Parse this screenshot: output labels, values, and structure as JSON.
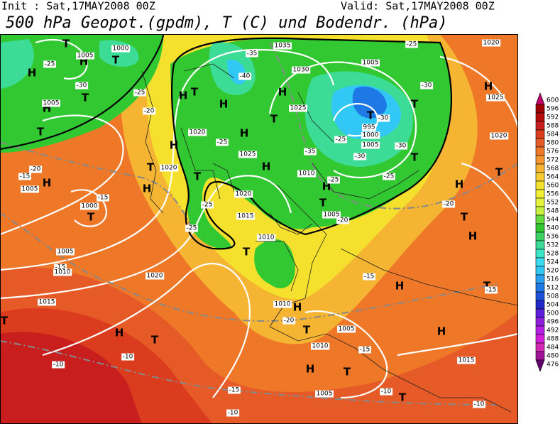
{
  "header": {
    "init": "Init : Sat,17MAY2008 00Z",
    "valid": "Valid: Sat,17MAY2008 00Z",
    "title": "500 hPa Geopot.(gpdm), T (C) und Bodendr. (hPa)"
  },
  "legend": {
    "levels": [
      600,
      596,
      592,
      588,
      584,
      580,
      576,
      572,
      568,
      564,
      560,
      556,
      552,
      548,
      544,
      540,
      536,
      532,
      528,
      524,
      520,
      516,
      512,
      508,
      504,
      500,
      496,
      492,
      488,
      484,
      480,
      476
    ],
    "colors": [
      "#c0006a",
      "#a00000",
      "#b40a0a",
      "#c81e1e",
      "#dc3c1e",
      "#e65a28",
      "#ee7828",
      "#f5962d",
      "#f5b432",
      "#f7cd32",
      "#f5e12d",
      "#f0f032",
      "#e6f53c",
      "#c8f03c",
      "#64dc3c",
      "#32c832",
      "#3cd264",
      "#3cdc96",
      "#3ce6c8",
      "#3cdcf0",
      "#32c8f5",
      "#28a0f0",
      "#1e78e6",
      "#1e50dc",
      "#1e28c8",
      "#5a1edc",
      "#8c1edc",
      "#b41ee6",
      "#d21edc",
      "#d228b4",
      "#a01496",
      "#64006e"
    ]
  },
  "map": {
    "labels": [
      "H",
      "T",
      "1005",
      "1000",
      "T",
      "-25",
      "H",
      "-30",
      "H",
      "T",
      "-25",
      "T",
      "-20",
      "1005",
      "-20",
      "-15",
      "1005",
      "H",
      "H",
      "1000",
      "T",
      "-15",
      "1005",
      "-15",
      "1010",
      "1015",
      "1020",
      "T",
      "H",
      "T",
      "-10",
      "-10",
      "-15",
      "-10",
      "H",
      "T",
      "H",
      "1020",
      "H",
      "H",
      "-25",
      "1025",
      "T",
      "1020",
      "T",
      "H",
      "-25",
      "1015",
      "-25",
      "T",
      "1010",
      "1020",
      "-35",
      "1035",
      "-40",
      "1030",
      "H",
      "1025",
      "T",
      "-35",
      "-30",
      "1010",
      "H",
      "T",
      "1005",
      "-20",
      "-25",
      "-25",
      "1005",
      "T",
      "-30",
      "995",
      "1000",
      "-25",
      "1005",
      "-30",
      "T",
      "T",
      "-25",
      "-30",
      "1020",
      "H",
      "1025",
      "1020",
      "T",
      "H",
      "-20",
      "T",
      "H",
      "H",
      "T",
      "-15",
      "-15",
      "1010",
      "H",
      "-20",
      "1005",
      "T",
      "1010",
      "-15",
      "T",
      "H",
      "1005",
      "-10",
      "T",
      "H",
      "1015",
      "-10"
    ]
  }
}
